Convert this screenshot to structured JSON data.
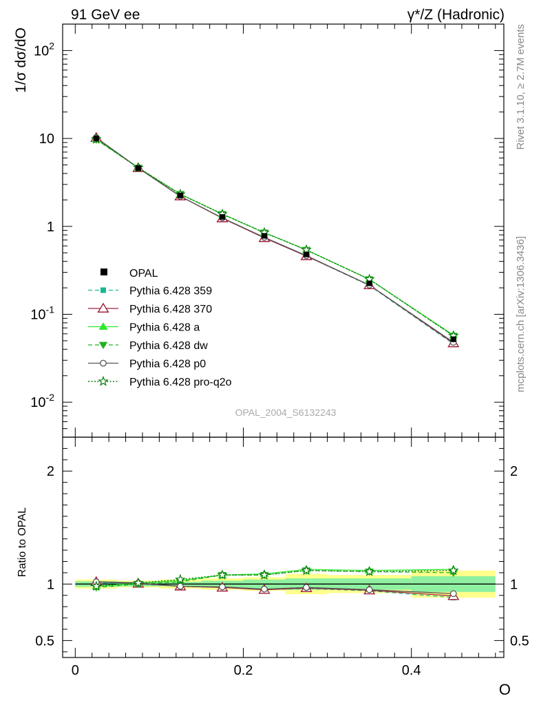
{
  "header": {
    "left": "91 GeV ee",
    "right": "γ*/Z (Hadronic)"
  },
  "side_labels": {
    "rivet": "Rivet 3.1.10, ≥ 2.7M events",
    "mcplots": "mcplots.cern.ch [arXiv:1306.3436]"
  },
  "watermark": "OPAL_2004_S6132243",
  "chart_data": [
    {
      "type": "line",
      "panel": "main",
      "ylabel": "1/σ dσ/dO",
      "yscale": "log",
      "ylim": [
        0.004,
        200
      ],
      "xlim": [
        -0.015,
        0.51
      ],
      "ytick_labels": [
        "10^-2",
        "10^-1",
        "1",
        "10",
        "10^2"
      ],
      "x": [
        0.025,
        0.075,
        0.125,
        0.175,
        0.225,
        0.275,
        0.35,
        0.45
      ],
      "data": {
        "name": "OPAL",
        "values": [
          10.0,
          4.6,
          2.25,
          1.28,
          0.78,
          0.48,
          0.225,
          0.052
        ],
        "errors": [
          0.25,
          0.1,
          0.05,
          0.04,
          0.03,
          0.025,
          0.012,
          0.004
        ]
      },
      "series": [
        {
          "name": "Pythia 6.428 359",
          "color": "#17b890",
          "values": [
            10.1,
            4.6,
            2.2,
            1.24,
            0.74,
            0.46,
            0.212,
            0.046
          ]
        },
        {
          "name": "Pythia 6.428 370",
          "color": "#a01f3a",
          "values": [
            10.2,
            4.62,
            2.2,
            1.24,
            0.74,
            0.46,
            0.215,
            0.047
          ]
        },
        {
          "name": "Pythia 6.428 a",
          "color": "#2ee82e",
          "values": [
            9.8,
            4.65,
            2.33,
            1.38,
            0.85,
            0.54,
            0.25,
            0.058
          ]
        },
        {
          "name": "Pythia 6.428 dw",
          "color": "#21b121",
          "values": [
            9.7,
            4.64,
            2.33,
            1.38,
            0.85,
            0.54,
            0.25,
            0.057
          ]
        },
        {
          "name": "Pythia 6.428 p0",
          "color": "#555555",
          "values": [
            10.2,
            4.62,
            2.2,
            1.25,
            0.75,
            0.465,
            0.215,
            0.048
          ]
        },
        {
          "name": "Pythia 6.428 pro-q2o",
          "color": "#0b7a0b",
          "values": [
            9.8,
            4.65,
            2.32,
            1.38,
            0.85,
            0.54,
            0.25,
            0.057
          ]
        }
      ]
    },
    {
      "type": "line",
      "panel": "ratio",
      "ylabel": "Ratio to OPAL",
      "xlabel": "O",
      "ylim": [
        0.35,
        2.3
      ],
      "xlim": [
        -0.015,
        0.51
      ],
      "ytick_labels": [
        "0.5",
        "1",
        "2"
      ],
      "xtick_labels": [
        "0",
        "0.2",
        "0.4"
      ],
      "bins": [
        [
          0.0,
          0.05
        ],
        [
          0.05,
          0.1
        ],
        [
          0.1,
          0.15
        ],
        [
          0.15,
          0.2
        ],
        [
          0.2,
          0.25
        ],
        [
          0.25,
          0.3
        ],
        [
          0.3,
          0.4
        ],
        [
          0.4,
          0.5
        ]
      ],
      "band_inner": [
        0.025,
        0.02,
        0.02,
        0.03,
        0.04,
        0.05,
        0.05,
        0.07
      ],
      "band_outer": [
        0.04,
        0.03,
        0.04,
        0.05,
        0.06,
        0.09,
        0.08,
        0.12
      ],
      "x": [
        0.025,
        0.075,
        0.125,
        0.175,
        0.225,
        0.275,
        0.35,
        0.45
      ],
      "series": [
        {
          "name": "Pythia 6.428 359",
          "values": [
            1.01,
            1.0,
            0.98,
            0.97,
            0.95,
            0.96,
            0.94,
            0.88
          ]
        },
        {
          "name": "Pythia 6.428 370",
          "values": [
            1.02,
            1.005,
            0.98,
            0.97,
            0.95,
            0.965,
            0.945,
            0.895
          ]
        },
        {
          "name": "Pythia 6.428 a",
          "values": [
            0.98,
            1.01,
            1.03,
            1.08,
            1.09,
            1.13,
            1.12,
            1.13
          ]
        },
        {
          "name": "Pythia 6.428 dw",
          "values": [
            0.97,
            1.0,
            1.02,
            1.08,
            1.08,
            1.12,
            1.11,
            1.1
          ]
        },
        {
          "name": "Pythia 6.428 p0",
          "values": [
            1.02,
            1.01,
            0.98,
            0.975,
            0.955,
            0.97,
            0.95,
            0.915
          ]
        },
        {
          "name": "Pythia 6.428 pro-q2o",
          "values": [
            0.98,
            1.01,
            1.04,
            1.08,
            1.08,
            1.12,
            1.11,
            1.12
          ]
        }
      ]
    }
  ]
}
